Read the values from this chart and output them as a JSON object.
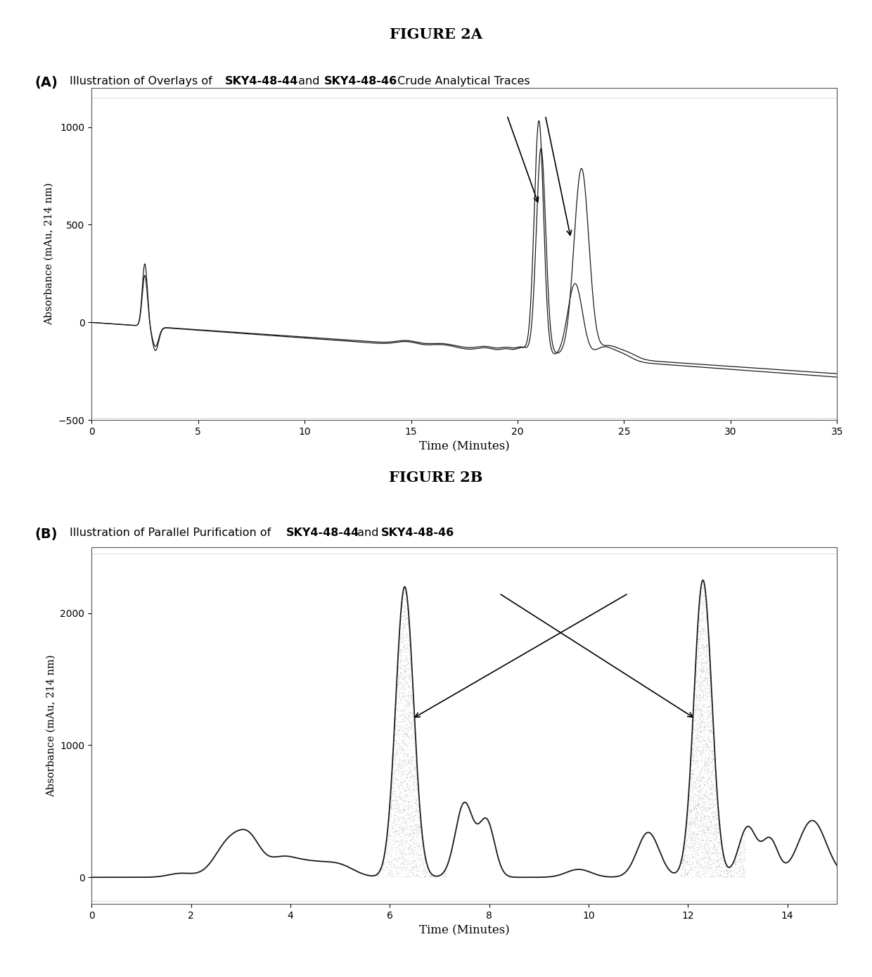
{
  "fig_title_A": "FIGURE 2A",
  "fig_title_B": "FIGURE 2B",
  "panel_A_label": "(A)",
  "panel_B_label": "(B)",
  "panel_A_xlabel": "Time (Minutes)",
  "panel_A_ylabel": "Absorbance (mAu, 214 nm)",
  "panel_A_xlim": [
    0,
    35
  ],
  "panel_A_ylim": [
    -500,
    1200
  ],
  "panel_A_yticks": [
    -500,
    0,
    500,
    1000
  ],
  "panel_A_xticks": [
    0,
    5,
    10,
    15,
    20,
    25,
    30,
    35
  ],
  "panel_B_xlabel": "Time (Minutes)",
  "panel_B_ylabel": "Absorbance (mAu, 214 nm)",
  "panel_B_xlim": [
    0,
    15
  ],
  "panel_B_ylim": [
    -200,
    2500
  ],
  "panel_B_yticks": [
    0,
    1000,
    2000
  ],
  "panel_B_xticks": [
    0,
    2,
    4,
    6,
    8,
    10,
    12,
    14
  ],
  "line_color": "#1a1a1a",
  "background_color": "#ffffff",
  "shade_color": "#c8c8c8"
}
